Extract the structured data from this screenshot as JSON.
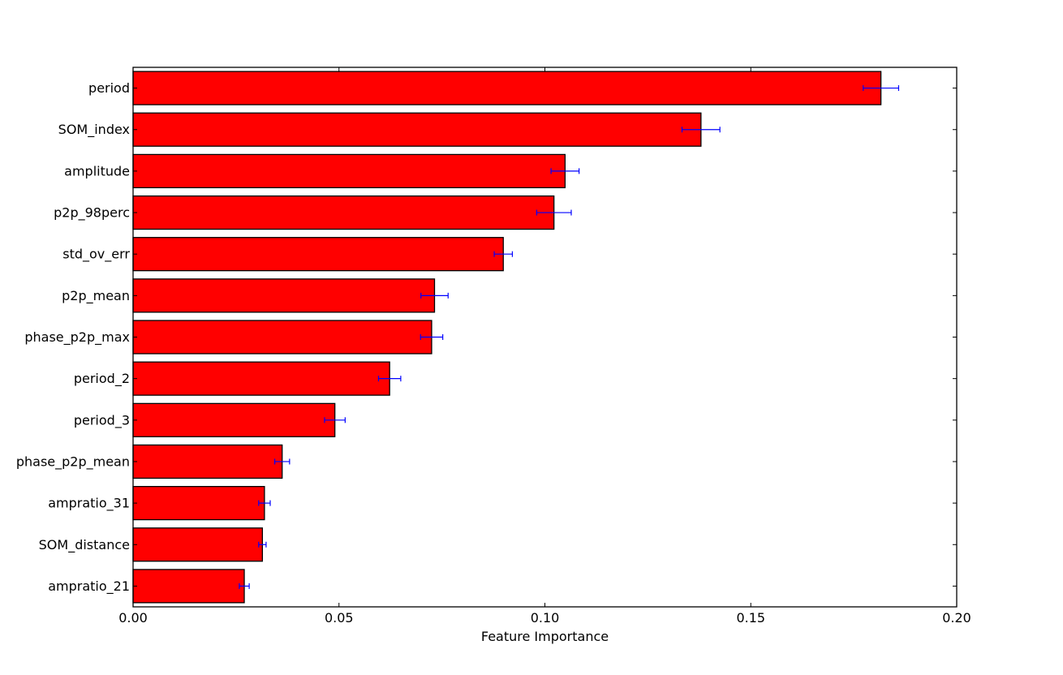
{
  "chart_data": {
    "type": "bar",
    "orientation": "horizontal",
    "title": "",
    "xlabel": "Feature Importance",
    "ylabel": "",
    "xlim": [
      0.0,
      0.2
    ],
    "xticks": [
      "0.00",
      "0.05",
      "0.10",
      "0.15",
      "0.20"
    ],
    "xtick_values": [
      0.0,
      0.05,
      0.1,
      0.15,
      0.2
    ],
    "grid": false,
    "legend": "none",
    "bar_color": "#ff0000",
    "error_color": "#0000ff",
    "categories": [
      "period",
      "SOM_index",
      "amplitude",
      "p2p_98perc",
      "std_ov_err",
      "p2p_mean",
      "phase_p2p_max",
      "period_2",
      "period_3",
      "phase_p2p_mean",
      "ampratio_31",
      "SOM_distance",
      "ampratio_21"
    ],
    "values": [
      0.1816,
      0.1379,
      0.1049,
      0.1022,
      0.0899,
      0.0732,
      0.0725,
      0.0623,
      0.049,
      0.0362,
      0.0319,
      0.0314,
      0.027
    ],
    "errors": [
      0.0043,
      0.0046,
      0.0034,
      0.0042,
      0.0022,
      0.0033,
      0.0027,
      0.0027,
      0.0025,
      0.0018,
      0.0014,
      0.0009,
      0.0012
    ]
  }
}
